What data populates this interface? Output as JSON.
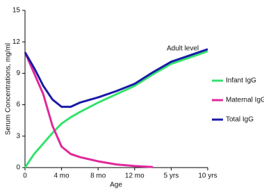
{
  "chart_data": {
    "type": "line",
    "x_label": "Age",
    "y_label": "Serum Concentrations, mg/ml",
    "annotation": "Adult level",
    "x": [
      0,
      0.25,
      0.5,
      0.75,
      1,
      1.25,
      1.5,
      2,
      2.5,
      3,
      3.5,
      4,
      4.5,
      5
    ],
    "xlim": [
      0,
      5
    ],
    "xticks": [
      0,
      {
        "value": 1,
        "label": "4 mo"
      },
      {
        "value": 2,
        "label": "8 mo"
      },
      {
        "value": 3,
        "label": "12 mo"
      },
      {
        "value": 4,
        "label": "5 yrs"
      },
      {
        "value": 5,
        "label": "10 yrs"
      }
    ],
    "ylim": [
      0,
      15
    ],
    "yticks": [
      0,
      3,
      6,
      9,
      12,
      15
    ],
    "series": [
      {
        "name": "Infant IgG",
        "color": "#33e36b",
        "values": [
          0,
          1.3,
          2.3,
          3.3,
          4.2,
          4.8,
          5.3,
          6.2,
          7.0,
          7.8,
          8.9,
          9.9,
          10.5,
          11.1
        ]
      },
      {
        "name": "Maternal IgG",
        "color": "#e0289a",
        "values": [
          11,
          9.0,
          7.0,
          4.0,
          2.0,
          1.3,
          1.0,
          0.6,
          0.3,
          0.15,
          0.05,
          null,
          null,
          null
        ]
      },
      {
        "name": "Total IgG",
        "color": "#1a1aa8",
        "values": [
          11,
          9.5,
          7.8,
          6.5,
          5.8,
          5.8,
          6.2,
          6.7,
          7.3,
          8.0,
          9.1,
          10.1,
          10.7,
          11.3
        ]
      }
    ]
  }
}
